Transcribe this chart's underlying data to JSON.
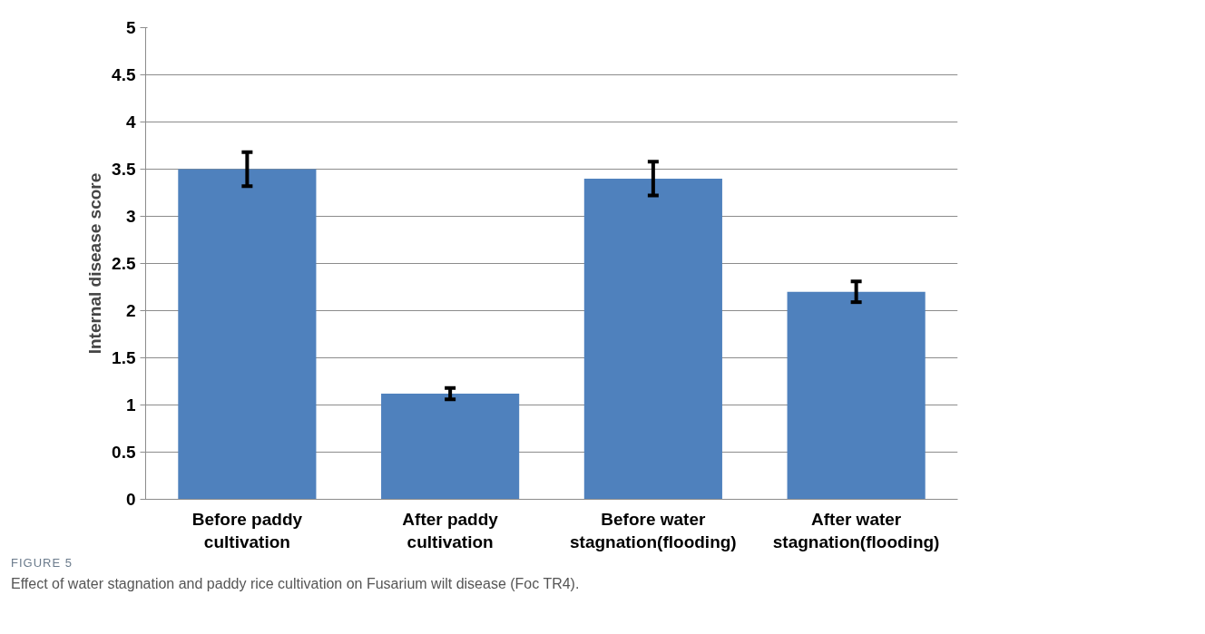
{
  "chart_data": {
    "type": "bar",
    "ylabel": "Internal disease score",
    "categories": [
      "Before paddy\ncultivation",
      "After paddy\ncultivation",
      "Before water\nstagnation(flooding)",
      "After water\nstagnation(flooding)"
    ],
    "values": [
      3.5,
      1.12,
      3.4,
      2.2
    ],
    "errors": [
      0.18,
      0.06,
      0.18,
      0.11
    ],
    "color": "#4f81bd",
    "ylim": [
      0,
      5
    ],
    "yticks": [
      0,
      0.5,
      1,
      1.5,
      2,
      2.5,
      3,
      3.5,
      4,
      4.5,
      5
    ],
    "grid": "y",
    "annotations": [
      "FIGURE 5",
      "Effect of water stagnation and paddy rice cultivation on Fusarium wilt disease (Foc TR4)."
    ]
  }
}
